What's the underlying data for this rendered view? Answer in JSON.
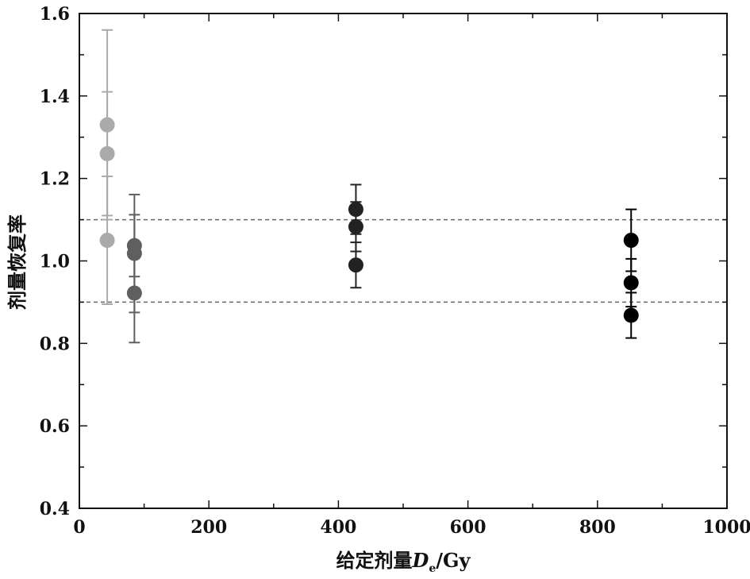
{
  "chart_data": {
    "type": "scatter",
    "xlabel": {
      "prefix": "给定剂量",
      "symbol": "D",
      "subscript": "e",
      "suffix": "/Gy"
    },
    "ylabel": "剂量恢复率",
    "xlim": [
      0,
      1000
    ],
    "ylim": [
      0.4,
      1.6
    ],
    "x_ticks": [
      0,
      200,
      400,
      600,
      800,
      1000
    ],
    "x_tick_labels": [
      "0",
      "200",
      "400",
      "600",
      "800",
      "1000"
    ],
    "y_ticks": [
      0.4,
      0.6,
      0.8,
      1.0,
      1.2,
      1.4,
      1.6
    ],
    "y_tick_labels": [
      "0.4",
      "0.6",
      "0.8",
      "1.0",
      "1.2",
      "1.4",
      "1.6"
    ],
    "reference_lines": [
      1.1,
      0.9
    ],
    "grid": false,
    "series": [
      {
        "color": "#aaaaaa",
        "points": [
          {
            "x": 43,
            "y": 1.33,
            "err": 0.23
          },
          {
            "x": 43,
            "y": 1.26,
            "err": 0.15
          },
          {
            "x": 43,
            "y": 1.05,
            "err": 0.155
          }
        ]
      },
      {
        "color": "#5f5f5f",
        "points": [
          {
            "x": 85,
            "y": 1.037,
            "err": 0.075
          },
          {
            "x": 85,
            "y": 1.018,
            "err": 0.143
          },
          {
            "x": 85,
            "y": 0.922,
            "err": 0.12
          }
        ]
      },
      {
        "color": "#222222",
        "points": [
          {
            "x": 427,
            "y": 1.125,
            "err": 0.06
          },
          {
            "x": 427,
            "y": 1.083,
            "err": 0.06
          },
          {
            "x": 427,
            "y": 0.99,
            "err": 0.055
          }
        ]
      },
      {
        "color": "#000000",
        "points": [
          {
            "x": 852,
            "y": 1.05,
            "err": 0.075
          },
          {
            "x": 852,
            "y": 0.947,
            "err": 0.058
          },
          {
            "x": 852,
            "y": 0.868,
            "err": 0.055
          }
        ]
      }
    ]
  }
}
